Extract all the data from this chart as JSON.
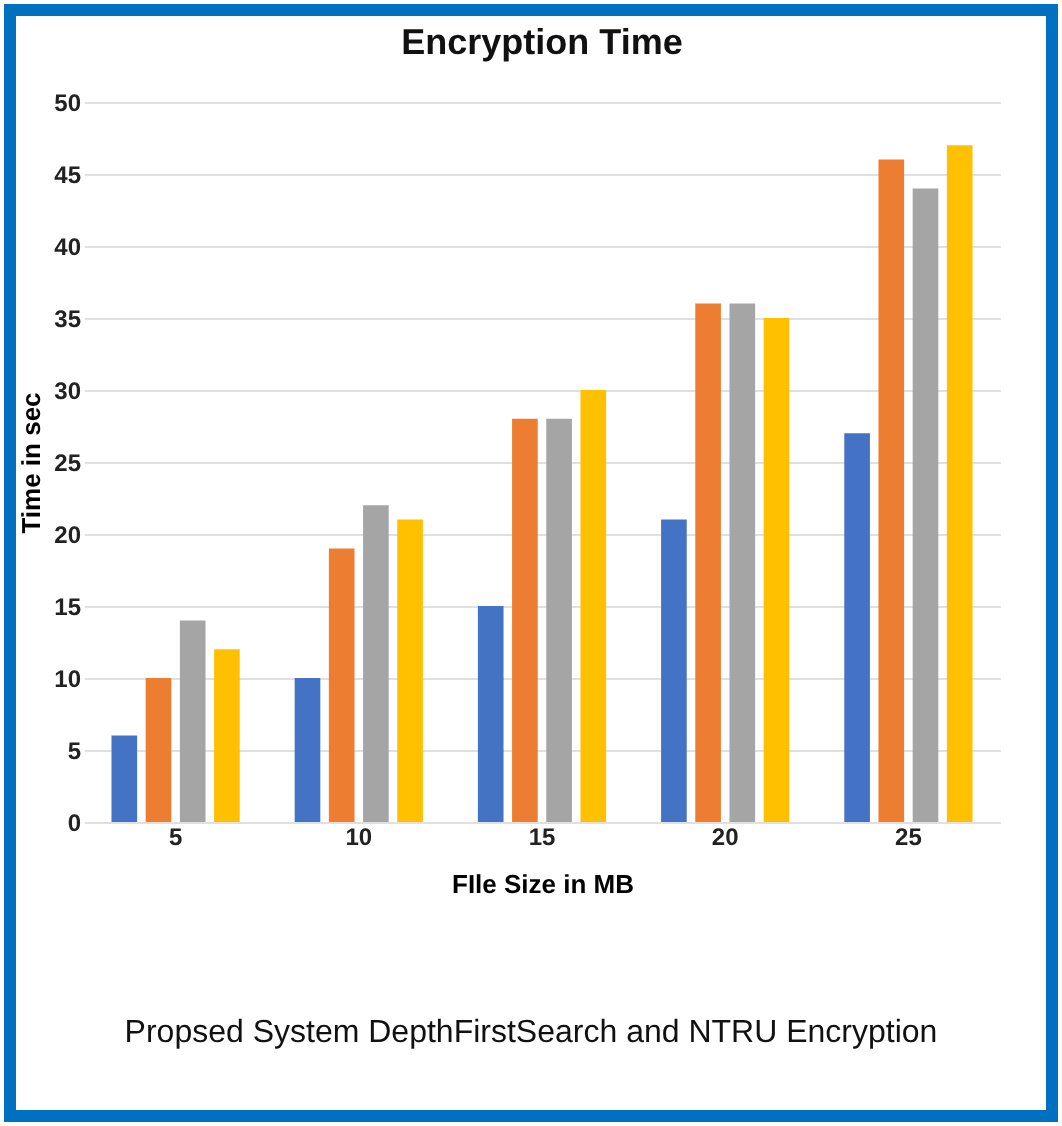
{
  "chart_data": {
    "type": "bar",
    "title": "Encryption Time",
    "xlabel": "FIle Size in MB",
    "ylabel": "Time in sec",
    "categories": [
      "5",
      "10",
      "15",
      "20",
      "25"
    ],
    "series": [
      {
        "color": "#4472c4",
        "values": [
          6,
          10,
          15,
          21,
          27
        ]
      },
      {
        "color": "#ed7d31",
        "values": [
          10,
          19,
          28,
          36,
          46
        ]
      },
      {
        "color": "#a5a5a5",
        "values": [
          14,
          22,
          28,
          36,
          44
        ]
      },
      {
        "color": "#ffc000",
        "values": [
          12,
          21,
          30,
          35,
          47
        ]
      }
    ],
    "ylim": [
      0,
      50
    ],
    "yticks": [
      0,
      5,
      10,
      15,
      20,
      25,
      30,
      35,
      40,
      45,
      50
    ],
    "grid": "y",
    "annotations": [
      "Propsed System DepthFirstSearch and NTRU Encryption"
    ]
  }
}
